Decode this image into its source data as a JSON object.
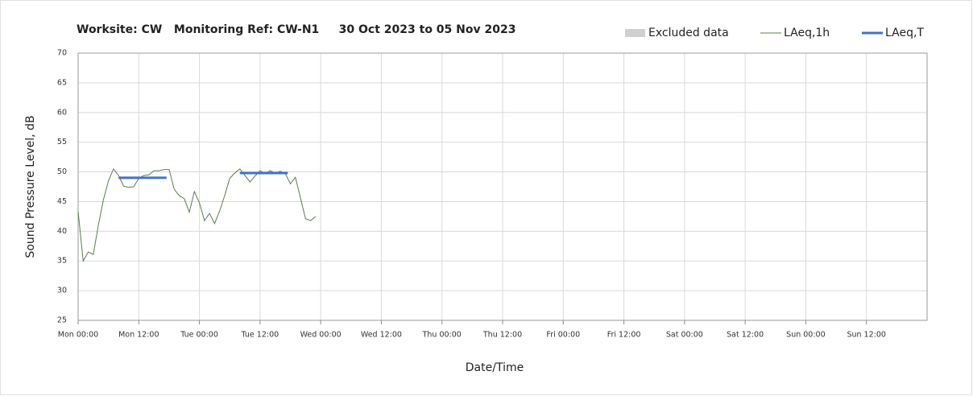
{
  "chart_data": {
    "type": "line",
    "title": "Worksite: CW   Monitoring Ref: CW-N1     30 Oct 2023 to 05 Nov 2023",
    "xlabel": "Date/Time",
    "ylabel": "Sound Pressure Level, dB",
    "xlim": [
      0,
      168
    ],
    "ylim": [
      25,
      70
    ],
    "xticks": [
      {
        "value": 0,
        "label": "Mon 00:00"
      },
      {
        "value": 12,
        "label": "Mon 12:00"
      },
      {
        "value": 24,
        "label": "Tue 00:00"
      },
      {
        "value": 36,
        "label": "Tue 12:00"
      },
      {
        "value": 48,
        "label": "Wed 00:00"
      },
      {
        "value": 60,
        "label": "Wed 12:00"
      },
      {
        "value": 72,
        "label": "Thu 00:00"
      },
      {
        "value": 84,
        "label": "Thu 12:00"
      },
      {
        "value": 96,
        "label": "Fri 00:00"
      },
      {
        "value": 108,
        "label": "Fri 12:00"
      },
      {
        "value": 120,
        "label": "Sat 00:00"
      },
      {
        "value": 132,
        "label": "Sat 12:00"
      },
      {
        "value": 144,
        "label": "Sun 00:00"
      },
      {
        "value": 156,
        "label": "Sun 12:00"
      }
    ],
    "yticks": [
      25,
      30,
      35,
      40,
      45,
      50,
      55,
      60,
      65,
      70
    ],
    "grid": true,
    "legend": "top-right",
    "series": [
      {
        "name": "Excluded data",
        "kind": "band",
        "color": "#d0d0d0",
        "x": [],
        "values": []
      },
      {
        "name": "LAeq,1h",
        "kind": "line",
        "color": "#5b7d4c",
        "width": 1,
        "x": [
          0,
          1,
          2,
          3,
          4,
          5,
          6,
          7,
          8,
          9,
          10,
          11,
          12,
          13,
          14,
          15,
          16,
          17,
          18,
          19,
          20,
          21,
          22,
          23,
          24,
          25,
          26,
          27,
          28,
          29,
          30,
          31,
          32,
          33,
          34,
          35,
          36,
          37,
          38,
          39,
          40,
          41,
          42,
          43,
          44,
          45,
          46,
          47
        ],
        "values": [
          43.3,
          35.0,
          36.5,
          36.1,
          41.0,
          45.3,
          48.5,
          50.5,
          49.4,
          47.6,
          47.4,
          47.5,
          48.9,
          49.4,
          49.5,
          50.2,
          50.2,
          50.4,
          50.4,
          47.1,
          46.0,
          45.5,
          43.2,
          46.7,
          44.8,
          41.8,
          43.0,
          41.3,
          43.4,
          46.0,
          48.9,
          49.8,
          50.5,
          49.4,
          48.3,
          49.3,
          50.2,
          49.7,
          50.2,
          49.8,
          50.1,
          49.7,
          48.0,
          49.1,
          45.6,
          42.1,
          41.8,
          42.5
        ]
      },
      {
        "name": "LAeq,T",
        "kind": "line",
        "color": "#4472c4",
        "width": 3,
        "x": [
          8,
          17.5,
          24,
          32,
          41.5
        ],
        "values": [
          49.0,
          49.0,
          null,
          49.8,
          49.8
        ]
      }
    ]
  }
}
